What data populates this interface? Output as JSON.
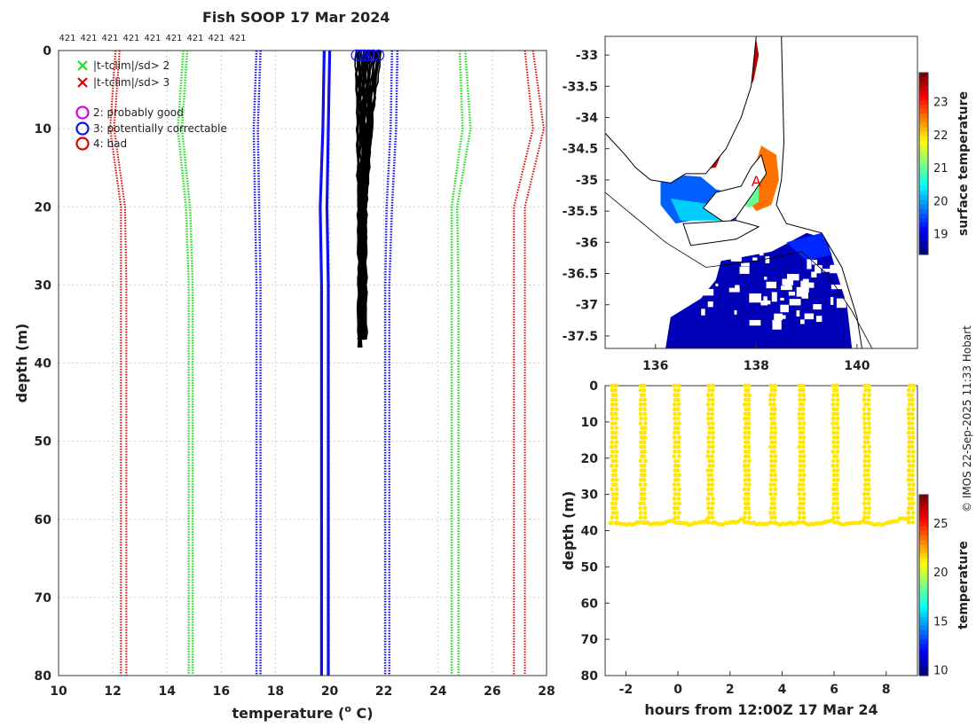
{
  "title": "Fish SOOP 17 Mar 2024",
  "credit": "© IMOS 22-Sep-2025 11:33 Hobart",
  "colors": {
    "red": "#e00000",
    "green": "#22dd22",
    "blue": "#1010ee",
    "black": "#000000",
    "grid": "#cccccc"
  },
  "profile": {
    "xlabel": "temperature (",
    "xlabel_sup": "o",
    "xlabel_tail": " C)",
    "ylabel": "depth (m)",
    "xlim": [
      10,
      28
    ],
    "ylim": [
      0,
      80
    ],
    "xticks": [
      "10",
      "12",
      "14",
      "16",
      "18",
      "20",
      "22",
      "24",
      "26",
      "28"
    ],
    "yticks": [
      "0",
      "10",
      "20",
      "30",
      "40",
      "50",
      "60",
      "70",
      "80"
    ],
    "count_labels": [
      "421",
      "421",
      "421",
      "421",
      "421",
      "421",
      "421",
      "421",
      "421"
    ],
    "legend": [
      {
        "symbol": "x",
        "color": "#22dd22",
        "text": "|t-tclim|/sd> 2"
      },
      {
        "symbol": "x",
        "color": "#e00000",
        "text": "|t-tclim|/sd> 3"
      },
      {
        "symbol": "o",
        "color": "#dd00dd",
        "text": "2: probably good"
      },
      {
        "symbol": "o",
        "color": "#1010ee",
        "text": "3: potentially correctable"
      },
      {
        "symbol": "o",
        "color": "#e00000",
        "text": "4: bad"
      }
    ],
    "blue_solid": [
      {
        "depth": [
          0,
          10,
          20,
          30,
          80
        ],
        "temp": [
          19.8,
          19.75,
          19.65,
          19.7,
          19.7
        ]
      },
      {
        "depth": [
          0,
          10,
          20,
          30,
          80
        ],
        "temp": [
          20.0,
          19.95,
          19.9,
          19.95,
          19.95
        ]
      }
    ],
    "blue_dotted": [
      {
        "depth": [
          0,
          10,
          20,
          30,
          80
        ],
        "temp": [
          17.3,
          17.2,
          17.25,
          17.3,
          17.3
        ]
      },
      {
        "depth": [
          0,
          10,
          20,
          30,
          80
        ],
        "temp": [
          17.45,
          17.35,
          17.4,
          17.45,
          17.45
        ]
      },
      {
        "depth": [
          0,
          10,
          20,
          30,
          80
        ],
        "temp": [
          22.3,
          22.25,
          22.1,
          22.05,
          22.05
        ]
      },
      {
        "depth": [
          0,
          10,
          20,
          30,
          80
        ],
        "temp": [
          22.5,
          22.45,
          22.3,
          22.2,
          22.2
        ]
      }
    ],
    "green_dotted": [
      {
        "depth": [
          0,
          10,
          20,
          30,
          80
        ],
        "temp": [
          14.6,
          14.4,
          14.7,
          14.8,
          14.8
        ]
      },
      {
        "depth": [
          0,
          10,
          20,
          30,
          80
        ],
        "temp": [
          14.75,
          14.55,
          14.85,
          14.95,
          14.95
        ]
      },
      {
        "depth": [
          0,
          10,
          20,
          30,
          80
        ],
        "temp": [
          24.8,
          24.9,
          24.5,
          24.5,
          24.5
        ]
      },
      {
        "depth": [
          0,
          10,
          20,
          30,
          80
        ],
        "temp": [
          25.0,
          25.2,
          24.7,
          24.75,
          24.75
        ]
      }
    ],
    "red_dotted": [
      {
        "depth": [
          0,
          10,
          20,
          30,
          80
        ],
        "temp": [
          12.1,
          11.9,
          12.3,
          12.3,
          12.3
        ]
      },
      {
        "depth": [
          0,
          10,
          20,
          30,
          80
        ],
        "temp": [
          12.25,
          12.05,
          12.45,
          12.5,
          12.5
        ]
      },
      {
        "depth": [
          0,
          10,
          20,
          30,
          80
        ],
        "temp": [
          27.2,
          27.5,
          26.8,
          26.8,
          26.8
        ]
      },
      {
        "depth": [
          0,
          10,
          20,
          30,
          80
        ],
        "temp": [
          27.5,
          27.9,
          27.2,
          27.2,
          27.2
        ]
      }
    ],
    "flag_markers_temp": [
      21.0,
      21.15,
      21.3,
      21.45,
      21.6,
      21.8
    ],
    "black_profile_band": {
      "t0": [
        20.95,
        21.9
      ],
      "t_mid": [
        21.0,
        21.6
      ],
      "t_deep": [
        21.05,
        21.35
      ],
      "max_depth": 38.5
    }
  },
  "map": {
    "xlim": [
      135,
      141.2
    ],
    "ylim": [
      -37.7,
      -32.7
    ],
    "xticks": [
      "136",
      "138",
      "140"
    ],
    "xtick_values": [
      136,
      138,
      140
    ],
    "yticks": [
      "-33",
      "-33.5",
      "-34",
      "-34.5",
      "-35",
      "-35.5",
      "-36",
      "-36.5",
      "-37",
      "-37.5"
    ],
    "ytick_values": [
      -33,
      -33.5,
      -34,
      -34.5,
      -35,
      -35.5,
      -36,
      -36.5,
      -37,
      -37.5
    ],
    "colorbar_label": "surface temperature",
    "cbar_ticks": [
      "19",
      "20",
      "21",
      "22",
      "23"
    ],
    "cbar_range": [
      18.4,
      23.9
    ],
    "marker_label": "A"
  },
  "time": {
    "xlabel": "hours from 12:00Z 17 Mar 24",
    "ylabel": "depth (m)",
    "xlim": [
      -2.8,
      9.2
    ],
    "ylim": [
      0,
      80
    ],
    "xticks": [
      "-2",
      "0",
      "2",
      "4",
      "6",
      "8"
    ],
    "xtick_values": [
      -2,
      0,
      2,
      4,
      6,
      8
    ],
    "yticks": [
      "0",
      "10",
      "20",
      "30",
      "40",
      "50",
      "60",
      "70",
      "80"
    ],
    "colorbar_label": "temperature",
    "cbar_ticks": [
      "10",
      "15",
      "20",
      "25"
    ],
    "cbar_range": [
      9.5,
      28
    ],
    "casts_hours": [
      -2.5,
      -1.4,
      -0.1,
      1.2,
      2.6,
      3.6,
      4.7,
      6.0,
      7.2,
      8.9
    ],
    "bottom_depth": 37.5
  }
}
